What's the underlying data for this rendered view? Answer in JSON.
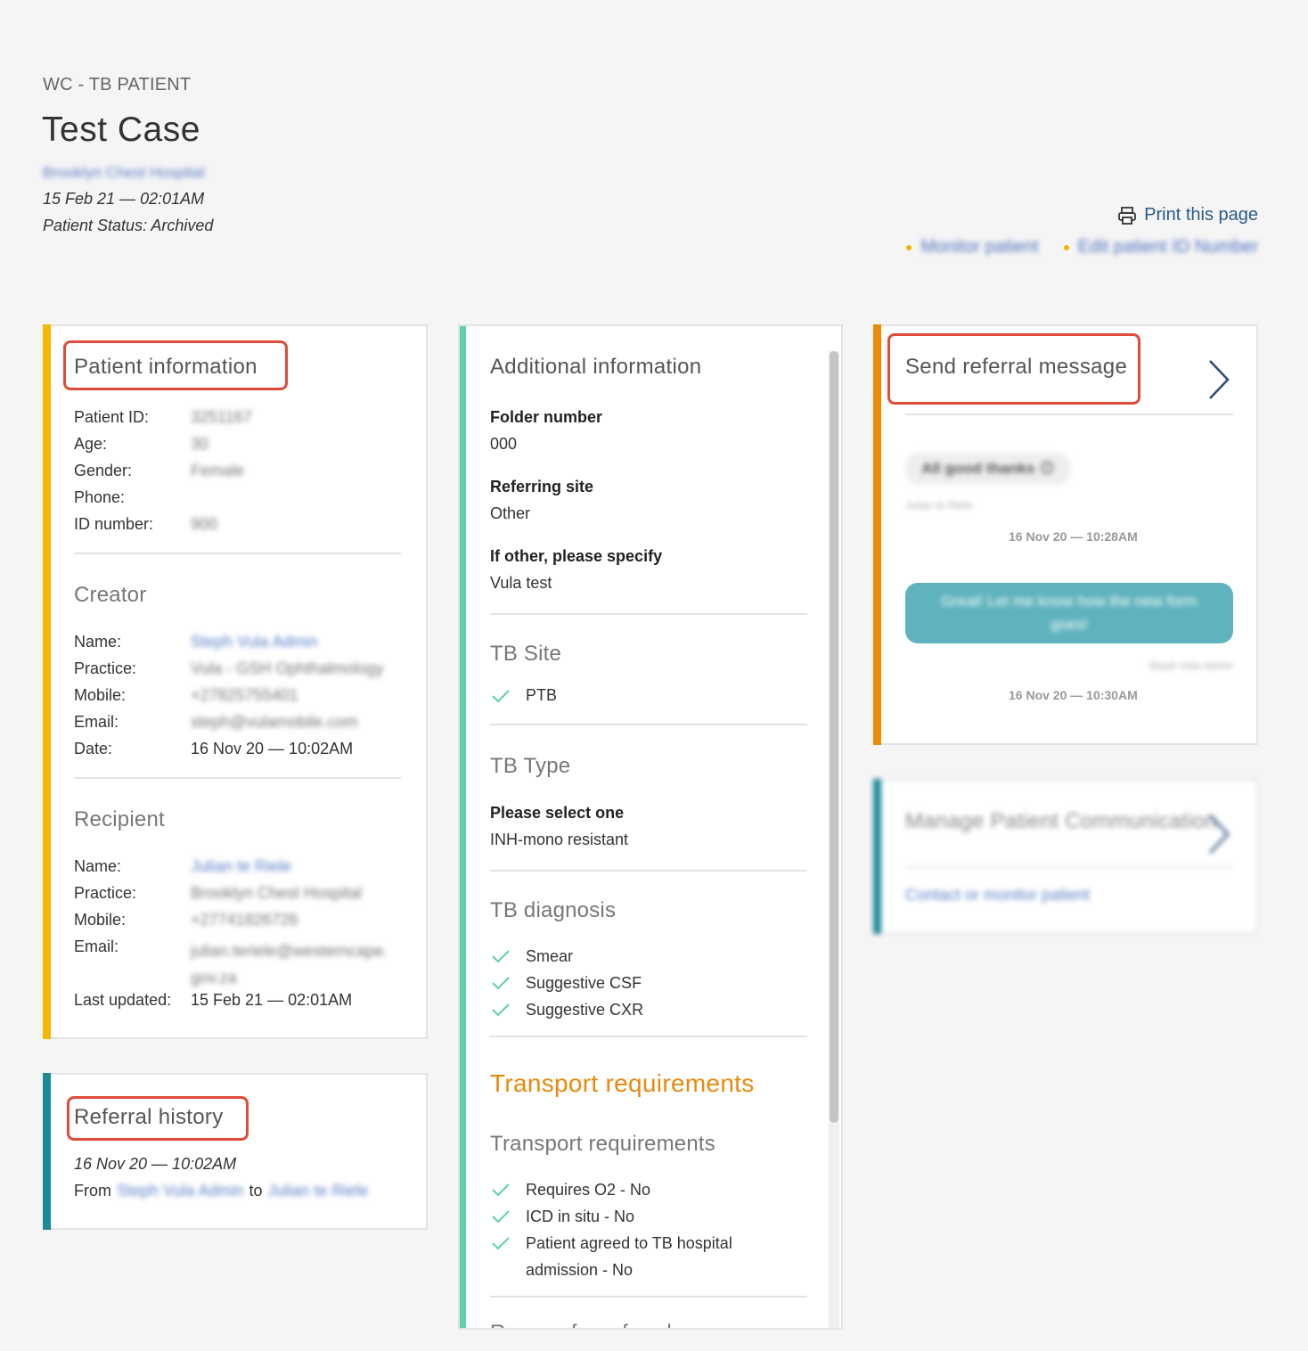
{
  "header": {
    "category": "WC - TB PATIENT",
    "title": "Test Case",
    "hospital": "Brooklyn Chest Hospital",
    "date": "15 Feb 21 — 02:01AM",
    "status": "Patient Status: Archived",
    "print_label": "Print this page",
    "actions": [
      "Monitor patient",
      "Edit patient ID Number"
    ]
  },
  "patient_info": {
    "title": "Patient information",
    "rows": [
      {
        "label": "Patient ID:",
        "value": "3251167"
      },
      {
        "label": "Age:",
        "value": "30"
      },
      {
        "label": "Gender:",
        "value": "Female"
      },
      {
        "label": "Phone:",
        "value": ""
      },
      {
        "label": "ID number:",
        "value": "900"
      }
    ],
    "creator": {
      "title": "Creator",
      "rows": [
        {
          "label": "Name:",
          "value": "Steph Vula Admin"
        },
        {
          "label": "Practice:",
          "value": "Vula - GSH Ophthalmology"
        },
        {
          "label": "Mobile:",
          "value": "+27825755401"
        },
        {
          "label": "Email:",
          "value": "steph@vulamobile.com"
        },
        {
          "label": "Date:",
          "value": "16 Nov 20 — 10:02AM"
        }
      ]
    },
    "recipient": {
      "title": "Recipient",
      "rows": [
        {
          "label": "Name:",
          "value": "Julian te Riele"
        },
        {
          "label": "Practice:",
          "value": "Brooklyn Chest Hospital"
        },
        {
          "label": "Mobile:",
          "value": "+27741826726"
        },
        {
          "label": "Email:",
          "value": "julian.teriele@westerncape.gov.za"
        },
        {
          "label": "Last updated:",
          "value": "15 Feb 21 — 02:01AM"
        }
      ]
    }
  },
  "referral_history": {
    "title": "Referral history",
    "date": "16 Nov 20 — 10:02AM",
    "from_label": "From",
    "from_name": "Steph Vula Admin",
    "to_label": "to",
    "to_name": "Julian te Riele"
  },
  "additional": {
    "title": "Additional information",
    "fields": [
      {
        "label": "Folder number",
        "value": "000"
      },
      {
        "label": "Referring site",
        "value": "Other"
      },
      {
        "label": "If other, please specify",
        "value": "Vula test"
      }
    ],
    "tb_site": {
      "title": "TB Site",
      "items": [
        "PTB"
      ]
    },
    "tb_type": {
      "title": "TB Type",
      "label": "Please select one",
      "value": "INH-mono resistant"
    },
    "tb_diagnosis": {
      "title": "TB diagnosis",
      "items": [
        "Smear",
        "Suggestive CSF",
        "Suggestive CXR"
      ]
    },
    "transport_heading": "Transport requirements",
    "transport": {
      "title": "Transport requirements",
      "items": [
        "Requires O2 - No",
        "ICD in situ - No",
        "Patient agreed to TB hospital",
        "admission - No"
      ]
    },
    "next_section": "Reason for referral"
  },
  "messages": {
    "title": "Send referral message",
    "items": [
      {
        "text": "All good thanks 😊",
        "author": "Julian te Riele",
        "time": "16 Nov 20 — 10:28AM"
      },
      {
        "text": "Great! Let me know how the new form goes!",
        "author": "Steph Vula Admin",
        "time": "16 Nov 20 — 10:30AM"
      }
    ]
  },
  "communication": {
    "title": "Manage Patient Communication",
    "link": "Contact or monitor patient"
  },
  "colors": {
    "yellow": "#f5b800",
    "teal": "#1a8a96",
    "mint": "#5fcfb0",
    "orange": "#ec8a06",
    "highlight": "#e04b3a"
  }
}
